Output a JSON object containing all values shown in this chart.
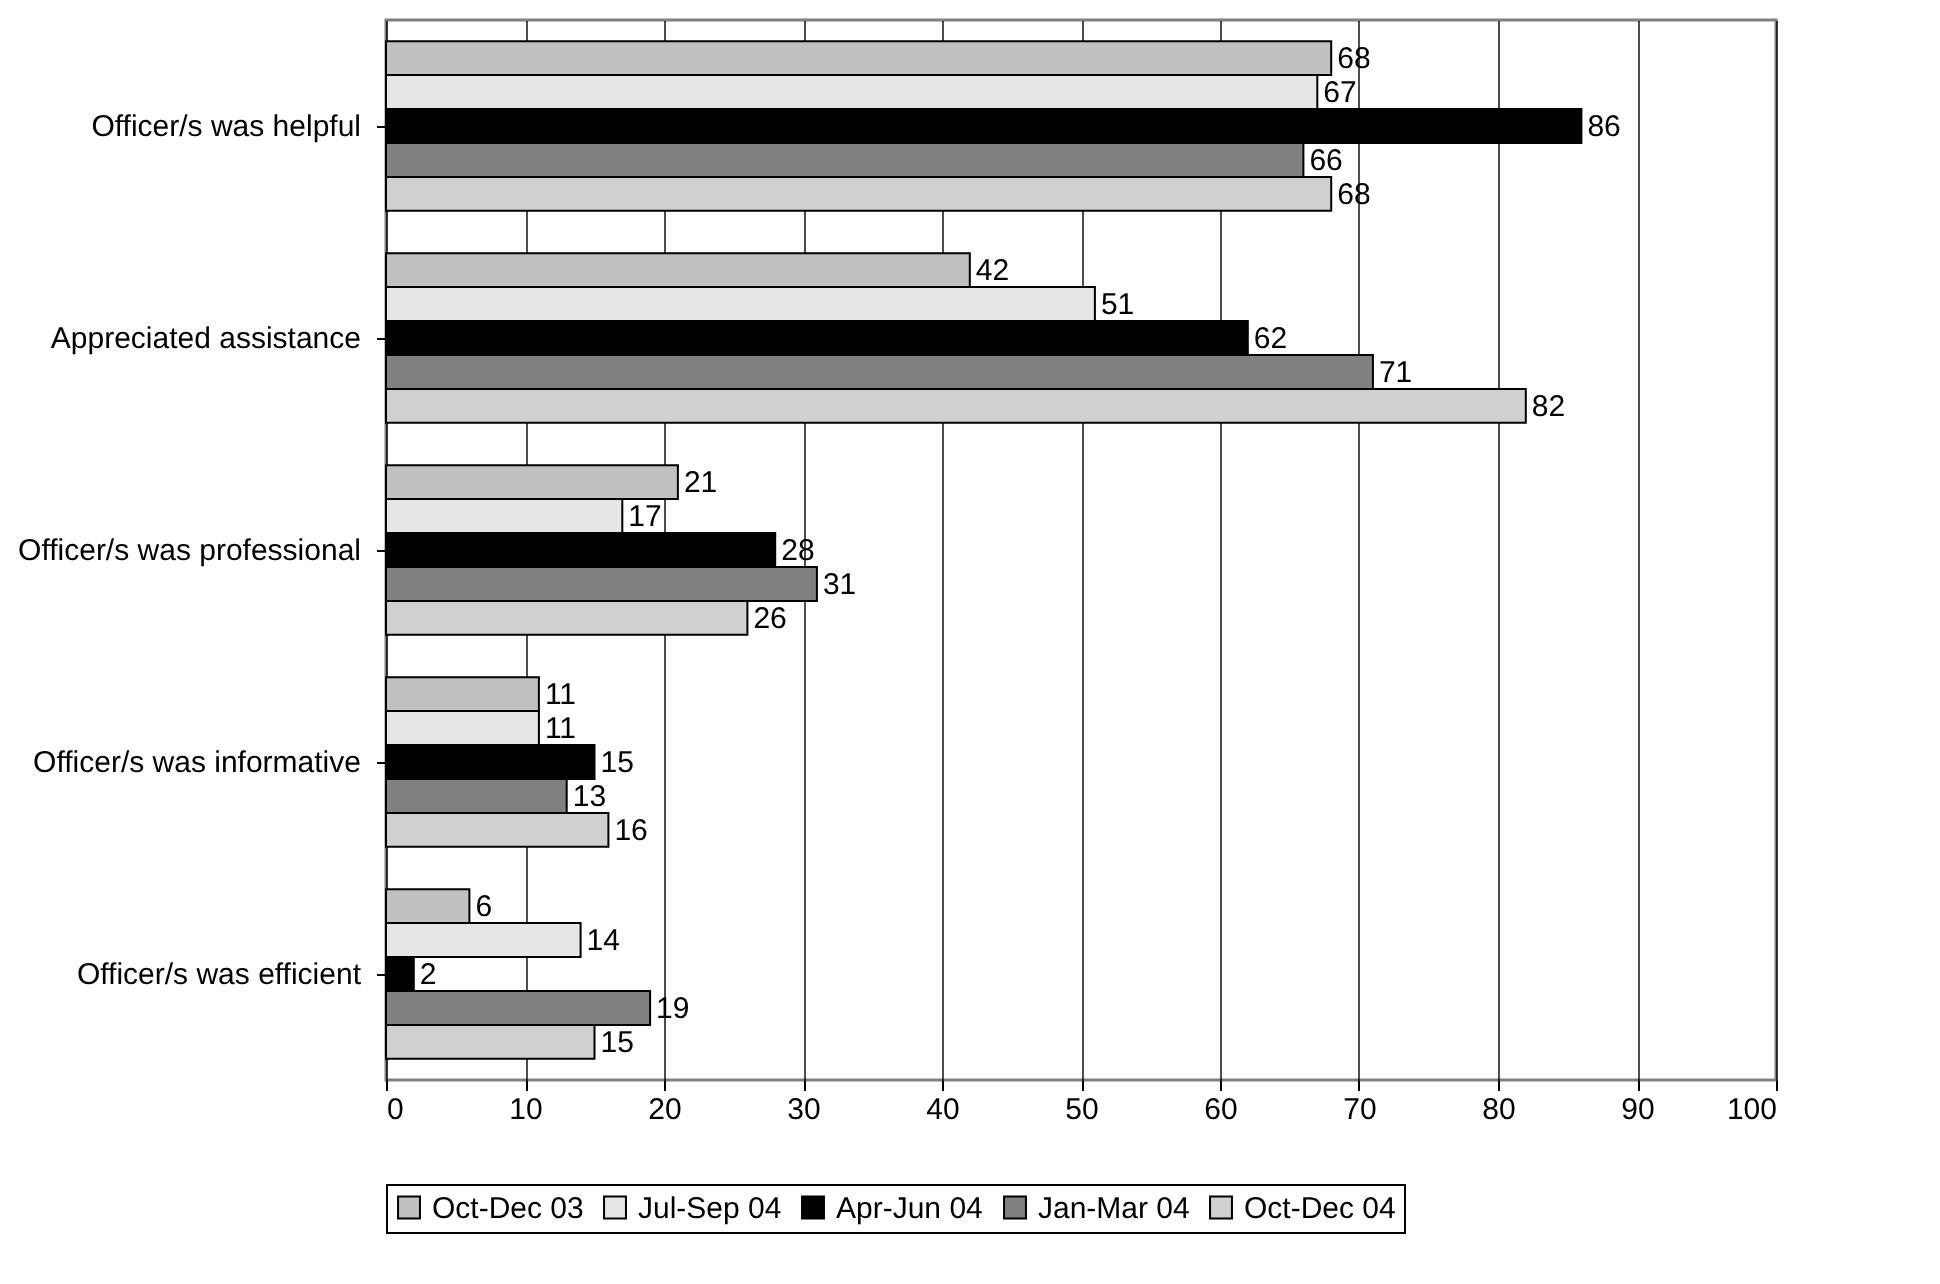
{
  "chart_data": {
    "type": "bar",
    "orientation": "horizontal",
    "categories": [
      "Officer/s was helpful",
      "Appreciated assistance",
      "Officer/s was professional",
      "Officer/s was informative",
      "Officer/s was efficient"
    ],
    "series": [
      {
        "name": "Oct-Dec 03",
        "color": "#c0c0c0",
        "values": [
          68,
          42,
          21,
          11,
          6
        ]
      },
      {
        "name": "Jul-Sep 04",
        "color": "#e6e6e6",
        "values": [
          67,
          51,
          17,
          11,
          14
        ]
      },
      {
        "name": "Apr-Jun 04",
        "color": "#000000",
        "values": [
          86,
          62,
          28,
          15,
          2
        ]
      },
      {
        "name": "Jan-Mar 04",
        "color": "#808080",
        "values": [
          66,
          71,
          31,
          13,
          19
        ]
      },
      {
        "name": "Oct-Dec 04",
        "color": "#d0d0d0",
        "values": [
          68,
          82,
          26,
          16,
          15
        ]
      }
    ],
    "xlim": [
      0,
      100
    ],
    "xticks": [
      0,
      10,
      20,
      30,
      40,
      50,
      60,
      70,
      80,
      90,
      100
    ],
    "grid": "x",
    "data_labels": true,
    "legend": "bottom"
  }
}
